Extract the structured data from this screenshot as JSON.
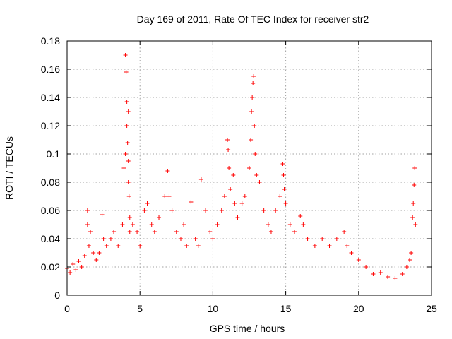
{
  "chart_data": {
    "type": "scatter",
    "title": "Day 169 of 2011, Rate Of TEC Index for receiver str2",
    "xlabel": "GPS time / hours",
    "ylabel": "ROTI / TECUs",
    "xlim": [
      0,
      25
    ],
    "ylim": [
      0,
      0.18
    ],
    "xticks": [
      0,
      5,
      10,
      15,
      20,
      25
    ],
    "yticks": [
      0,
      0.02,
      0.04,
      0.06,
      0.08,
      0.1,
      0.12,
      0.14,
      0.16,
      0.18
    ],
    "xtick_labels": [
      "0",
      "5",
      "10",
      "15",
      "20",
      "25"
    ],
    "ytick_labels": [
      "0",
      "0.02",
      "0.04",
      "0.06",
      "0.08",
      "0.1",
      "0.12",
      "0.14",
      "0.16",
      "0.18"
    ],
    "grid": true,
    "legend": false,
    "marker": "+",
    "marker_color": "#ff0000",
    "points": [
      [
        0.0,
        0.019
      ],
      [
        0.2,
        0.016
      ],
      [
        0.4,
        0.022
      ],
      [
        0.6,
        0.018
      ],
      [
        0.8,
        0.024
      ],
      [
        1.0,
        0.02
      ],
      [
        1.2,
        0.028
      ],
      [
        1.4,
        0.06
      ],
      [
        1.4,
        0.05
      ],
      [
        1.5,
        0.035
      ],
      [
        1.6,
        0.045
      ],
      [
        1.8,
        0.03
      ],
      [
        2.0,
        0.025
      ],
      [
        2.2,
        0.03
      ],
      [
        2.4,
        0.057
      ],
      [
        2.5,
        0.04
      ],
      [
        2.7,
        0.035
      ],
      [
        3.0,
        0.04
      ],
      [
        3.2,
        0.045
      ],
      [
        3.5,
        0.035
      ],
      [
        3.8,
        0.05
      ],
      [
        4.0,
        0.17
      ],
      [
        4.05,
        0.158
      ],
      [
        4.1,
        0.137
      ],
      [
        4.1,
        0.12
      ],
      [
        4.15,
        0.108
      ],
      [
        4.2,
        0.095
      ],
      [
        4.2,
        0.08
      ],
      [
        4.25,
        0.07
      ],
      [
        4.3,
        0.055
      ],
      [
        4.3,
        0.045
      ],
      [
        4.0,
        0.1
      ],
      [
        3.9,
        0.09
      ],
      [
        4.2,
        0.13
      ],
      [
        4.5,
        0.05
      ],
      [
        4.8,
        0.045
      ],
      [
        5.0,
        0.035
      ],
      [
        5.3,
        0.06
      ],
      [
        5.5,
        0.065
      ],
      [
        5.8,
        0.05
      ],
      [
        6.0,
        0.045
      ],
      [
        6.3,
        0.055
      ],
      [
        6.7,
        0.07
      ],
      [
        6.9,
        0.088
      ],
      [
        7.0,
        0.07
      ],
      [
        7.2,
        0.06
      ],
      [
        7.5,
        0.045
      ],
      [
        7.8,
        0.04
      ],
      [
        8.0,
        0.05
      ],
      [
        8.2,
        0.035
      ],
      [
        8.5,
        0.066
      ],
      [
        8.8,
        0.04
      ],
      [
        9.0,
        0.035
      ],
      [
        9.2,
        0.082
      ],
      [
        9.5,
        0.06
      ],
      [
        9.8,
        0.045
      ],
      [
        10.0,
        0.04
      ],
      [
        10.3,
        0.05
      ],
      [
        10.6,
        0.06
      ],
      [
        10.8,
        0.07
      ],
      [
        11.0,
        0.11
      ],
      [
        11.05,
        0.103
      ],
      [
        11.1,
        0.09
      ],
      [
        11.2,
        0.075
      ],
      [
        11.4,
        0.085
      ],
      [
        11.5,
        0.065
      ],
      [
        11.7,
        0.055
      ],
      [
        12.0,
        0.065
      ],
      [
        12.2,
        0.07
      ],
      [
        12.5,
        0.09
      ],
      [
        12.6,
        0.11
      ],
      [
        12.65,
        0.13
      ],
      [
        12.7,
        0.14
      ],
      [
        12.75,
        0.15
      ],
      [
        12.8,
        0.155
      ],
      [
        12.85,
        0.12
      ],
      [
        12.9,
        0.1
      ],
      [
        13.0,
        0.085
      ],
      [
        13.2,
        0.08
      ],
      [
        13.5,
        0.06
      ],
      [
        13.8,
        0.05
      ],
      [
        14.0,
        0.045
      ],
      [
        14.3,
        0.06
      ],
      [
        14.6,
        0.07
      ],
      [
        14.8,
        0.093
      ],
      [
        14.85,
        0.085
      ],
      [
        14.9,
        0.075
      ],
      [
        15.0,
        0.065
      ],
      [
        15.3,
        0.05
      ],
      [
        15.6,
        0.045
      ],
      [
        16.0,
        0.056
      ],
      [
        16.2,
        0.05
      ],
      [
        16.5,
        0.04
      ],
      [
        17.0,
        0.035
      ],
      [
        17.5,
        0.04
      ],
      [
        18.0,
        0.035
      ],
      [
        18.5,
        0.04
      ],
      [
        19.0,
        0.045
      ],
      [
        19.2,
        0.035
      ],
      [
        19.5,
        0.03
      ],
      [
        20.0,
        0.025
      ],
      [
        20.5,
        0.02
      ],
      [
        21.0,
        0.015
      ],
      [
        21.5,
        0.016
      ],
      [
        22.0,
        0.013
      ],
      [
        22.5,
        0.012
      ],
      [
        23.0,
        0.015
      ],
      [
        23.3,
        0.02
      ],
      [
        23.5,
        0.025
      ],
      [
        23.6,
        0.03
      ],
      [
        23.7,
        0.055
      ],
      [
        23.75,
        0.065
      ],
      [
        23.8,
        0.078
      ],
      [
        23.85,
        0.09
      ],
      [
        23.9,
        0.05
      ]
    ]
  }
}
